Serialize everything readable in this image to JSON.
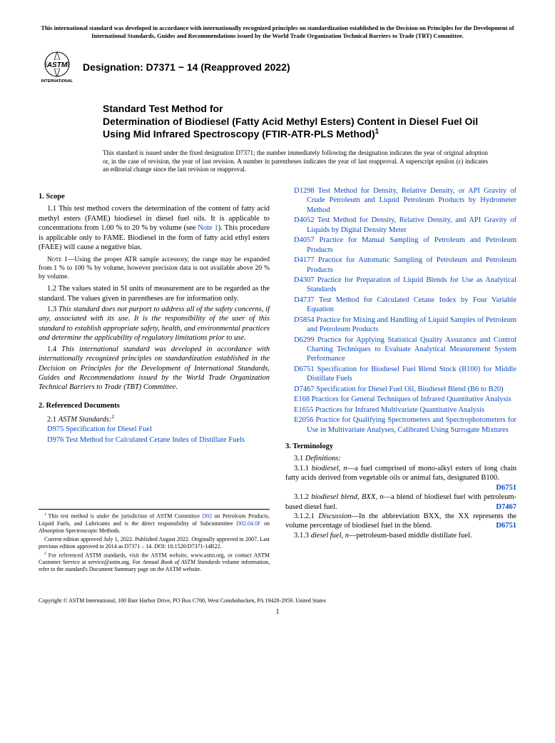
{
  "topNote": "This international standard was developed in accordance with internationally recognized principles on standardization established in the Decision on Principles for the Development of International Standards, Guides and Recommendations issued by the World Trade Organization Technical Barriers to Trade (TBT) Committee.",
  "logo": {
    "text": "ASTM",
    "sub": "INTERNATIONAL"
  },
  "designation": "Designation: D7371 − 14 (Reapproved 2022)",
  "titlePrefix": "Standard Test Method for",
  "titleMain": "Determination of Biodiesel (Fatty Acid Methyl Esters) Content in Diesel Fuel Oil Using Mid Infrared Spectroscopy (FTIR-ATR-PLS Method)",
  "titleSup": "1",
  "titleNote": "This standard is issued under the fixed designation D7371; the number immediately following the designation indicates the year of original adoption or, in the case of revision, the year of last revision. A number in parentheses indicates the year of last reapproval. A superscript epsilon (ε) indicates an editorial change since the last revision or reapproval.",
  "scope": {
    "head": "1. Scope",
    "p1a": "1.1 This test method covers the determination of the content of fatty acid methyl esters (FAME) biodiesel in diesel fuel oils. It is applicable to concentrations from 1.00 % to 20 % by volume (see ",
    "p1link": "Note 1",
    "p1b": "). This procedure is applicable only to FAME. Biodiesel in the form of fatty acid ethyl esters (FAEE) will cause a negative bias.",
    "note1Label": "Note",
    "note1": " 1—Using the proper ATR sample accessory, the range may be expanded from 1 % to 100 % by volume, however precision data is not available above 20 % by volume.",
    "p2": "1.2 The values stated in SI units of measurement are to be regarded as the standard. The values given in parentheses are for information only.",
    "p3a": "1.3 ",
    "p3b": "This standard does not purport to address all of the safety concerns, if any, associated with its use. It is the responsibility of the user of this standard to establish appropriate safety, health, and environmental practices and determine the applicability of regulatory limitations prior to use.",
    "p4a": "1.4 ",
    "p4b": "This international standard was developed in accordance with internationally recognized principles on standardization established in the Decision on Principles for the Development of International Standards, Guides and Recommendations issued by the World Trade Organization Technical Barriers to Trade (TBT) Committee."
  },
  "refs": {
    "head": "2. Referenced Documents",
    "sub": "2.1 ",
    "subItalic": "ASTM Standards:",
    "subSup": "2",
    "leftItems": [
      {
        "code": "D975",
        "title": "Specification for Diesel Fuel"
      },
      {
        "code": "D976",
        "title": "Test Method for Calculated Cetane Index of Distillate Fuels"
      }
    ],
    "rightItems": [
      {
        "code": "D1298",
        "title": "Test Method for Density, Relative Density, or API Gravity of Crude Petroleum and Liquid Petroleum Products by Hydrometer Method"
      },
      {
        "code": "D4052",
        "title": "Test Method for Density, Relative Density, and API Gravity of Liquids by Digital Density Meter"
      },
      {
        "code": "D4057",
        "title": "Practice for Manual Sampling of Petroleum and Petroleum Products"
      },
      {
        "code": "D4177",
        "title": "Practice for Automatic Sampling of Petroleum and Petroleum Products"
      },
      {
        "code": "D4307",
        "title": "Practice for Preparation of Liquid Blends for Use as Analytical Standards"
      },
      {
        "code": "D4737",
        "title": "Test Method for Calculated Cetane Index by Four Variable Equation"
      },
      {
        "code": "D5854",
        "title": "Practice for Mixing and Handling of Liquid Samples of Petroleum and Petroleum Products"
      },
      {
        "code": "D6299",
        "title": "Practice for Applying Statistical Quality Assurance and Control Charting Techniques to Evaluate Analytical Measurement System Performance"
      },
      {
        "code": "D6751",
        "title": "Specification for Biodiesel Fuel Blend Stock (B100) for Middle Distillate Fuels"
      },
      {
        "code": "D7467",
        "title": "Specification for Diesel Fuel Oil, Biodiesel Blend (B6 to B20)"
      },
      {
        "code": "E168",
        "title": "Practices for General Techniques of Infrared Quantitative Analysis"
      },
      {
        "code": "E1655",
        "title": "Practices for Infrared Multivariate Quantitative Analysis"
      },
      {
        "code": "E2056",
        "title": "Practice for Qualifying Spectrometers and Spectrophotometers for Use in Multivariate Analyses, Calibrated Using Surrogate Mixtures"
      }
    ]
  },
  "terminology": {
    "head": "3. Terminology",
    "sub": "3.1 ",
    "subItalic": "Definitions:",
    "t1num": "3.1.1 ",
    "t1term": "biodiesel, n",
    "t1body": "—a fuel comprised of mono-alkyl esters of long chain fatty acids derived from vegetable oils or animal fats, designated B100.",
    "t1ref": "D6751",
    "t2num": "3.1.2 ",
    "t2term": "biodiesel blend, BXX, n",
    "t2body": "—a blend of biodiesel fuel with petroleum-based diesel fuel.",
    "t2ref": "D7467",
    "t3num": "3.1.2.1 ",
    "t3term": "Discussion",
    "t3body": "—In the abbreviation BXX, the XX represents the volume percentage of biodiesel fuel in the blend.",
    "t3ref": "D6751",
    "t4num": "3.1.3 ",
    "t4term": "diesel fuel, n",
    "t4body": "—petroleum-based middle distillate fuel."
  },
  "footnotes": {
    "f1a": "This test method is under the jurisdiction of ASTM Committee ",
    "f1link1": "D02",
    "f1b": " on Petroleum Products, Liquid Fuels, and Lubricants and is the direct responsibility of Subcommittee ",
    "f1link2": "D02.04.0F",
    "f1c": " on Absorption Spectroscopic Methods.",
    "f1d": "Current edition approved July 1, 2022. Published August 2022. Originally approved in 2007. Last previous edition approved in 2014 as D7371 – 14. DOI: 10.1520/D7371-14R22.",
    "f2a": "For referenced ASTM standards, visit the ASTM website, www.astm.org, or contact ASTM Customer Service at service@astm.org. For ",
    "f2i": "Annual Book of ASTM Standards",
    "f2b": " volume information, refer to the standard's Document Summary page on the ASTM website."
  },
  "copyright": "Copyright © ASTM International, 100 Barr Harbor Drive, PO Box C700, West Conshohocken, PA 19428-2959. United States",
  "pageNum": "1",
  "colors": {
    "link": "#0a49c2",
    "text": "#000000",
    "bg": "#ffffff"
  }
}
